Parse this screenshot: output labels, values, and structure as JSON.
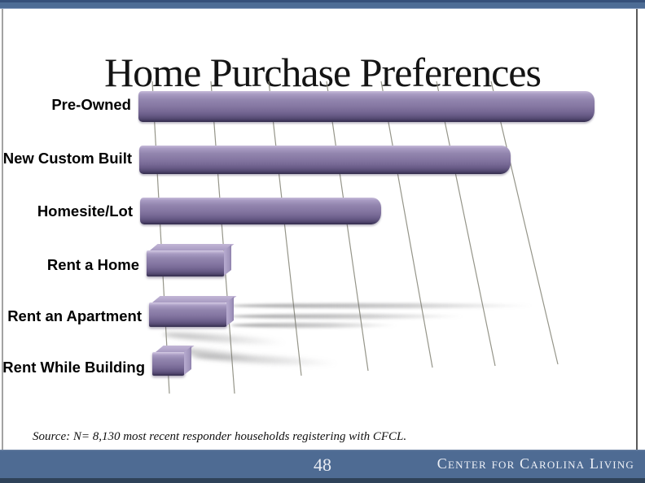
{
  "slide": {
    "title": "Home Purchase Preferences"
  },
  "source_note": "Source:  N= 8,130  most recent responder households registering with CFCL.",
  "footer": {
    "page_number": "48",
    "brand": "Center for Carolina Living"
  },
  "colors": {
    "accent_blue_band": "#4d6c95",
    "footer_blue": "#4e6b93",
    "bar_purple_mid": "#8678a3",
    "bar_purple_light": "#a89bc2",
    "bar_purple_dark": "#3c3458",
    "gridline": "#8a8a7d",
    "title_text": "#141414"
  },
  "chart_data": {
    "type": "bar",
    "orientation": "horizontal",
    "title": "Home Purchase Preferences",
    "categories": [
      "Pre-Owned",
      "New Custom Built",
      "Homesite/Lot",
      "Rent a Home",
      "Rent an Apartment",
      "Rent While Building"
    ],
    "values": [
      70,
      57,
      37,
      12,
      12,
      5
    ],
    "values_note": "estimated percent; value axis has no labels in the image",
    "xlabel": "",
    "ylabel": "",
    "xlim": [
      0,
      75
    ],
    "gridlines": 7,
    "grid": true,
    "legend": false,
    "style": "3D purple bars on white, perspective gridlines, shadow streaks"
  }
}
